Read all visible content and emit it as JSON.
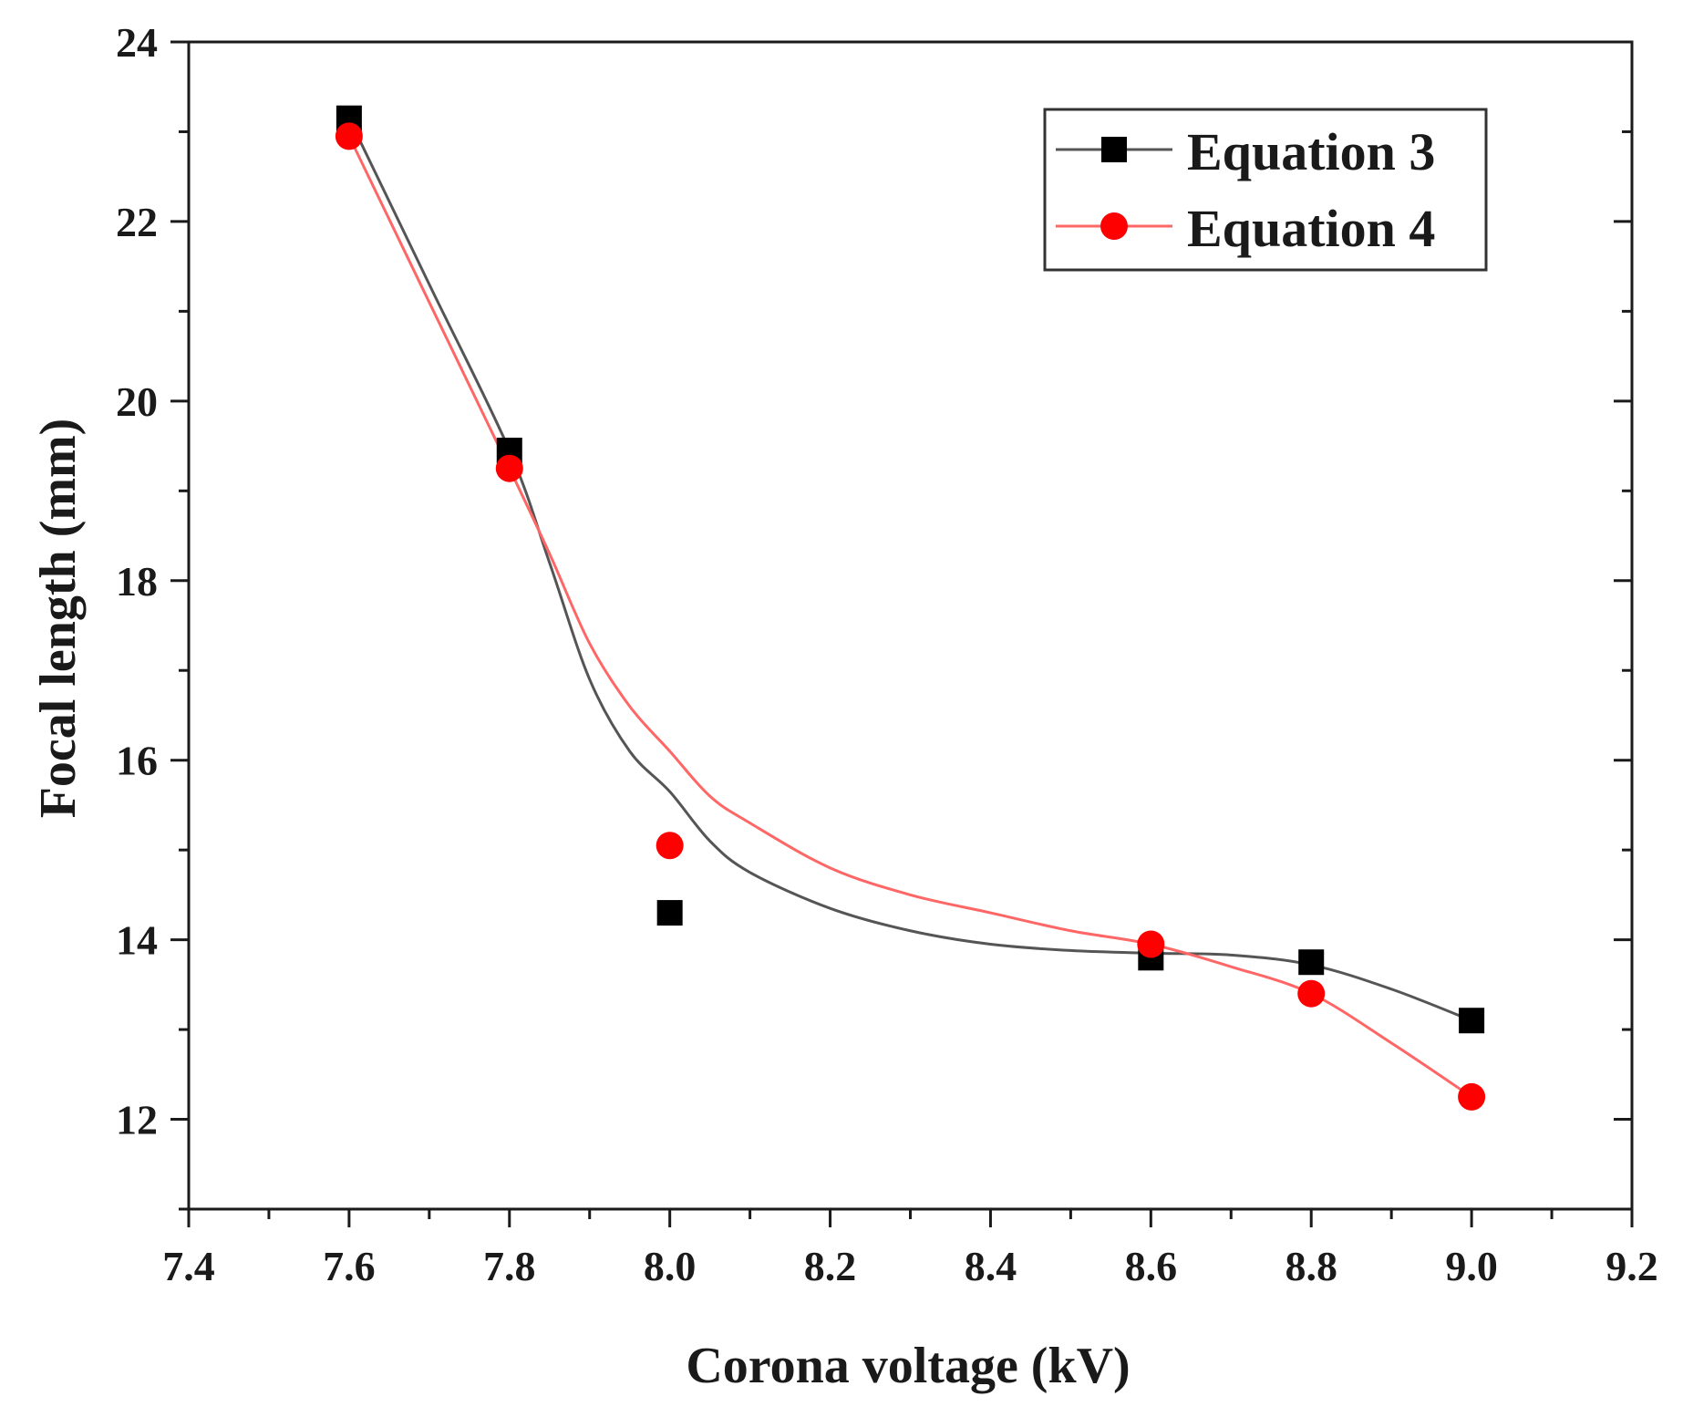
{
  "chart_data": {
    "type": "scatter",
    "title": "",
    "xlabel": "Corona voltage (kV)",
    "ylabel": "Focal length (mm)",
    "xlim": [
      7.4,
      9.2
    ],
    "ylim": [
      11,
      24
    ],
    "xticks": [
      "7.4",
      "7.6",
      "7.8",
      "8.0",
      "8.2",
      "8.4",
      "8.6",
      "8.8",
      "9.0",
      "9.2"
    ],
    "yticks": [
      "12",
      "14",
      "16",
      "18",
      "20",
      "22",
      "24"
    ],
    "legend_position": "top-right",
    "series": [
      {
        "name": "Equation 3",
        "marker": "square",
        "color": "#000000",
        "line_color": "#555555",
        "x": [
          7.6,
          7.8,
          8.0,
          8.6,
          8.8,
          9.0
        ],
        "y": [
          23.15,
          19.45,
          14.3,
          13.8,
          13.75,
          13.1
        ],
        "fit_curve": {
          "x": [
            7.6,
            7.7,
            7.8,
            7.85,
            7.9,
            7.95,
            8.0,
            8.05,
            8.1,
            8.2,
            8.3,
            8.4,
            8.5,
            8.6,
            8.7,
            8.8,
            8.9,
            9.0
          ],
          "y": [
            23.15,
            21.3,
            19.45,
            18.2,
            16.9,
            16.1,
            15.65,
            15.1,
            14.75,
            14.35,
            14.1,
            13.95,
            13.88,
            13.85,
            13.83,
            13.72,
            13.45,
            13.1
          ]
        }
      },
      {
        "name": "Equation 4",
        "marker": "circle",
        "color": "#ff0000",
        "line_color": "#ff6666",
        "x": [
          7.6,
          7.8,
          8.0,
          8.6,
          8.8,
          9.0
        ],
        "y": [
          22.95,
          19.25,
          15.05,
          13.95,
          13.4,
          12.25
        ],
        "fit_curve": {
          "x": [
            7.6,
            7.7,
            7.8,
            7.85,
            7.9,
            7.95,
            8.0,
            8.05,
            8.1,
            8.2,
            8.3,
            8.4,
            8.5,
            8.6,
            8.7,
            8.8,
            8.9,
            9.0
          ],
          "y": [
            22.95,
            21.1,
            19.25,
            18.3,
            17.3,
            16.6,
            16.1,
            15.6,
            15.3,
            14.8,
            14.5,
            14.3,
            14.1,
            13.95,
            13.7,
            13.4,
            12.85,
            12.25
          ]
        }
      }
    ]
  }
}
